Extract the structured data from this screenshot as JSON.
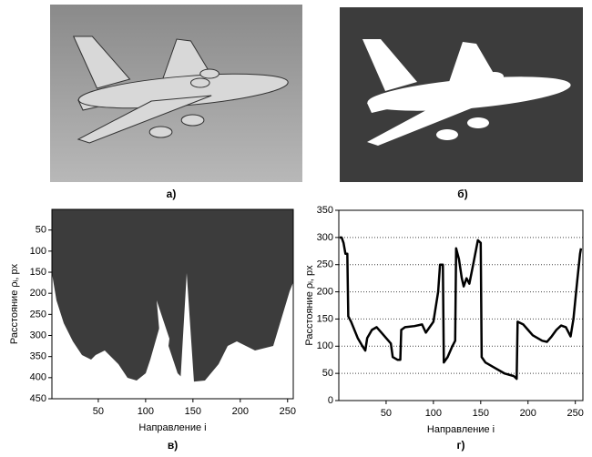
{
  "panels": {
    "photo": {
      "caption": "а)"
    },
    "silhouette": {
      "caption": "б)"
    }
  },
  "chart_data": [
    {
      "type": "image",
      "caption": "в)",
      "xlabel": "Направление i",
      "ylabel": "Расстояние ρᵢ, px",
      "xlim": [
        1,
        256
      ],
      "ylim": [
        1,
        450
      ],
      "y_inverted": true,
      "xticks": [
        50,
        100,
        150,
        200,
        250
      ],
      "yticks": [
        50,
        100,
        150,
        200,
        250,
        300,
        350,
        400,
        450
      ]
    },
    {
      "type": "line",
      "caption": "г)",
      "xlabel": "Направление i",
      "ylabel": "Расстояние ρᵢ, px",
      "xlim": [
        0,
        258
      ],
      "ylim": [
        0,
        350
      ],
      "grid": true,
      "xticks": [
        50,
        100,
        150,
        200,
        250
      ],
      "yticks": [
        0,
        50,
        100,
        150,
        200,
        250,
        300,
        350
      ],
      "series": [
        {
          "color": "#000000",
          "x": [
            1,
            3,
            5,
            7,
            9,
            10,
            13,
            20,
            25,
            28,
            30,
            35,
            40,
            45,
            50,
            55,
            57,
            62,
            65,
            66,
            70,
            80,
            88,
            92,
            96,
            100,
            105,
            107,
            110,
            111,
            115,
            120,
            123,
            124,
            127,
            130,
            132,
            135,
            138,
            142,
            147,
            150,
            151,
            155,
            165,
            175,
            185,
            188,
            189,
            195,
            200,
            205,
            215,
            220,
            225,
            230,
            235,
            240,
            245,
            248,
            252,
            255,
            256
          ],
          "values": [
            300,
            300,
            290,
            270,
            270,
            155,
            145,
            115,
            100,
            92,
            115,
            130,
            135,
            125,
            115,
            105,
            80,
            75,
            75,
            130,
            135,
            137,
            140,
            125,
            135,
            145,
            200,
            250,
            250,
            70,
            80,
            100,
            110,
            280,
            260,
            225,
            210,
            225,
            215,
            250,
            295,
            290,
            80,
            70,
            60,
            50,
            45,
            40,
            145,
            140,
            130,
            120,
            110,
            108,
            118,
            130,
            138,
            135,
            118,
            150,
            220,
            270,
            280
          ]
        }
      ]
    }
  ]
}
